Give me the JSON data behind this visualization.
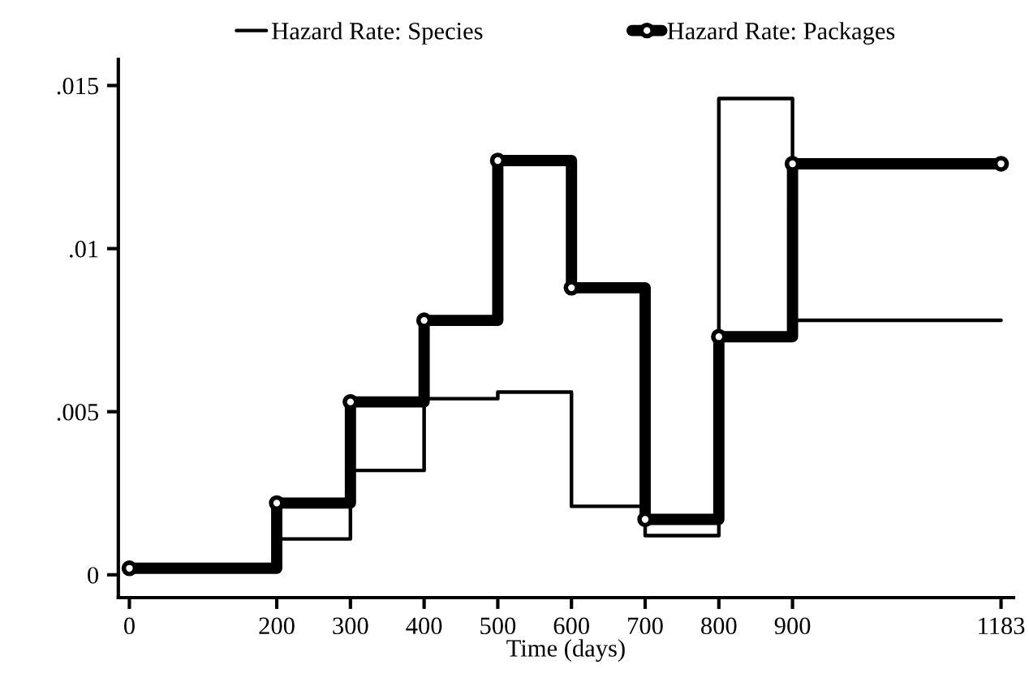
{
  "chart_data": {
    "type": "step",
    "xlabel": "Time (days)",
    "xlim": [
      -15,
      1200
    ],
    "ylim": [
      -0.0007,
      0.0158
    ],
    "xticks": [
      0,
      200,
      300,
      400,
      500,
      600,
      700,
      800,
      900,
      1183
    ],
    "yticks": [
      0,
      {
        "value": 0.005,
        "label": ".005"
      },
      {
        "value": 0.01,
        "label": ".01"
      },
      {
        "value": 0.015,
        "label": ".015"
      }
    ],
    "x": [
      0,
      200,
      300,
      400,
      500,
      600,
      700,
      800,
      900,
      1183
    ],
    "series": [
      {
        "name": "Hazard Rate: Species",
        "color": "#000000",
        "marker": "none",
        "values": [
          0.0002,
          0.0011,
          0.0032,
          0.0054,
          0.0056,
          0.0021,
          0.0012,
          0.0146,
          0.0078,
          0.0078
        ]
      },
      {
        "name": "Hazard Rate: Packages",
        "color": "#000000",
        "marker": "circle",
        "values": [
          0.0002,
          0.0022,
          0.0053,
          0.0078,
          0.0127,
          0.0088,
          0.0017,
          0.0073,
          0.0126,
          0.0126
        ]
      }
    ],
    "legend": "top",
    "grid": false
  }
}
